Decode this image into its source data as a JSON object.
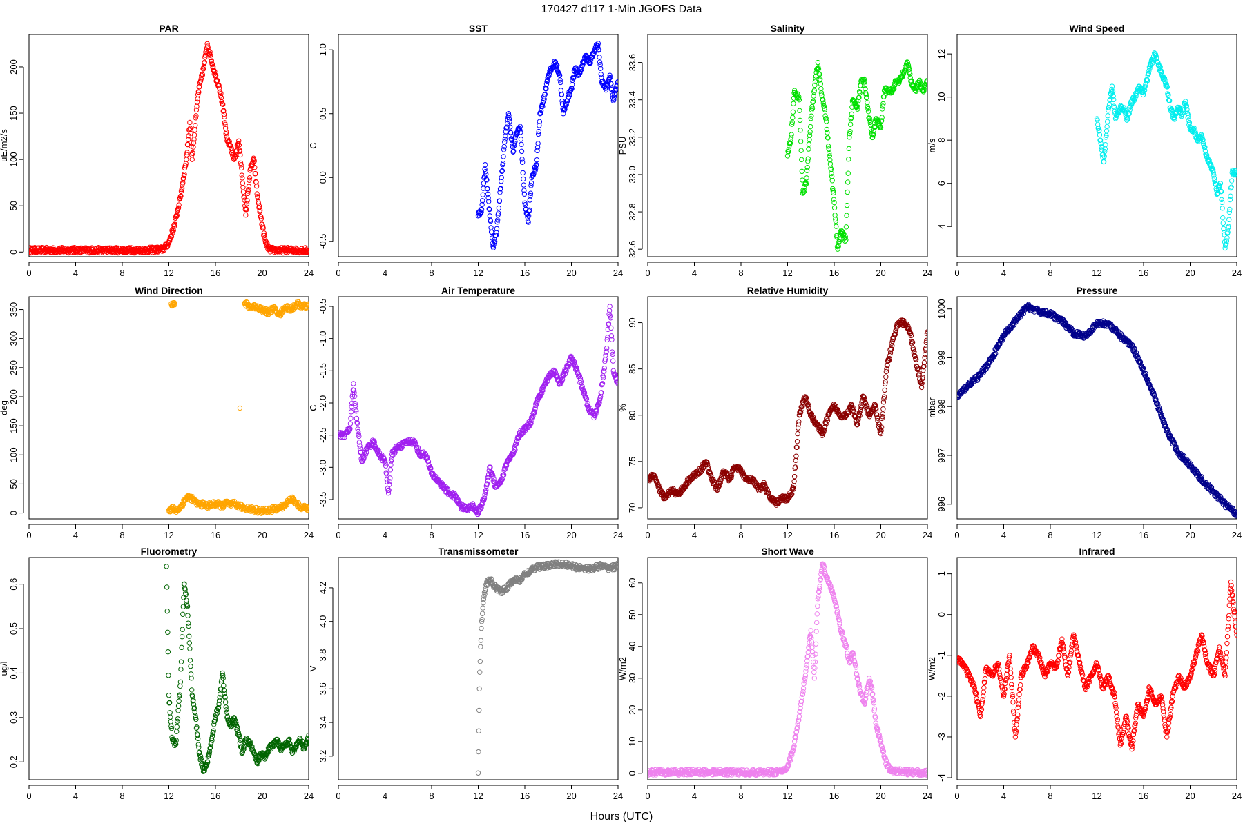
{
  "figure": {
    "title": "170427   d117   1-Min  JGOFS Data",
    "xlabel": "Hours (UTC)"
  },
  "chart_data": [
    {
      "type": "scatter",
      "title": "PAR",
      "ylabel": "uE/m2/s",
      "color": "#ff0000",
      "xlim": [
        0,
        24
      ],
      "ylim": [
        -5,
        235
      ],
      "xticks": [
        0,
        4,
        8,
        12,
        16,
        20,
        24
      ],
      "yticks": [
        0,
        50,
        100,
        150,
        200
      ],
      "x": [
        0,
        2,
        4,
        6,
        8,
        10,
        11.5,
        12,
        12.5,
        13,
        13.5,
        13.8,
        14,
        14.5,
        15,
        15.3,
        15.6,
        16,
        16.3,
        16.6,
        17,
        17.3,
        17.6,
        18,
        18.3,
        18.6,
        19,
        19.3,
        19.6,
        20,
        20.3,
        20.6,
        21,
        22,
        23,
        24
      ],
      "y": [
        2,
        2,
        2,
        2,
        2,
        2,
        3,
        10,
        30,
        60,
        100,
        140,
        100,
        170,
        200,
        225,
        210,
        190,
        180,
        160,
        120,
        115,
        100,
        120,
        80,
        40,
        90,
        100,
        60,
        30,
        10,
        3,
        2,
        2,
        2,
        2
      ]
    },
    {
      "type": "scatter",
      "title": "SST",
      "ylabel": "C",
      "color": "#0000ff",
      "xlim": [
        0,
        24
      ],
      "ylim": [
        -0.62,
        1.12
      ],
      "xticks": [
        0,
        4,
        8,
        12,
        16,
        20,
        24
      ],
      "yticks": [
        -0.5,
        0.0,
        0.5,
        1.0
      ],
      "x": [
        12,
        12.3,
        12.6,
        13,
        13.3,
        13.6,
        14,
        14.3,
        14.6,
        15,
        15.3,
        15.6,
        16,
        16.3,
        16.6,
        17,
        17.3,
        17.6,
        18,
        18.3,
        18.6,
        19,
        19.3,
        19.6,
        20,
        20.3,
        20.6,
        21,
        21.3,
        21.6,
        22,
        22.3,
        22.6,
        23,
        23.3,
        23.6,
        24
      ],
      "y": [
        -0.3,
        -0.25,
        0.1,
        -0.3,
        -0.55,
        -0.4,
        0.0,
        0.3,
        0.5,
        0.2,
        0.35,
        0.4,
        -0.2,
        -0.35,
        0.0,
        0.1,
        0.5,
        0.6,
        0.8,
        0.85,
        0.9,
        0.8,
        0.5,
        0.6,
        0.7,
        0.85,
        0.8,
        0.9,
        0.95,
        0.9,
        1.0,
        1.05,
        0.75,
        0.7,
        0.8,
        0.6,
        0.75
      ]
    },
    {
      "type": "scatter",
      "title": "Salinity",
      "ylabel": "PSU",
      "color": "#00e000",
      "xlim": [
        0,
        24
      ],
      "ylim": [
        32.56,
        33.75
      ],
      "xticks": [
        0,
        4,
        8,
        12,
        16,
        20,
        24
      ],
      "yticks": [
        32.6,
        32.8,
        33.0,
        33.2,
        33.4,
        33.6
      ],
      "x": [
        12,
        12.3,
        12.6,
        13,
        13.3,
        13.6,
        14,
        14.3,
        14.6,
        15,
        15.3,
        15.6,
        16,
        16.3,
        16.6,
        17,
        17.3,
        17.6,
        18,
        18.3,
        18.6,
        19,
        19.3,
        19.6,
        20,
        20.3,
        20.6,
        21,
        21.3,
        21.6,
        22,
        22.3,
        22.6,
        23,
        23.3,
        23.6,
        24
      ],
      "y": [
        33.1,
        33.2,
        33.45,
        33.4,
        32.9,
        32.95,
        33.3,
        33.45,
        33.6,
        33.4,
        33.3,
        33.1,
        32.85,
        32.6,
        32.7,
        32.65,
        33.2,
        33.4,
        33.35,
        33.5,
        33.5,
        33.3,
        33.2,
        33.3,
        33.25,
        33.45,
        33.45,
        33.45,
        33.5,
        33.5,
        33.55,
        33.6,
        33.5,
        33.45,
        33.5,
        33.45,
        33.5
      ]
    },
    {
      "type": "scatter",
      "title": "Wind Speed",
      "ylabel": "m/s",
      "color": "#00eeee",
      "xlim": [
        0,
        24
      ],
      "ylim": [
        2.6,
        12.9
      ],
      "xticks": [
        0,
        4,
        8,
        12,
        16,
        20,
        24
      ],
      "yticks": [
        4,
        6,
        8,
        10,
        12
      ],
      "x": [
        12,
        12.3,
        12.6,
        13,
        13.3,
        13.6,
        14,
        14.3,
        14.6,
        15,
        15.3,
        15.6,
        16,
        16.3,
        16.6,
        17,
        17.3,
        17.6,
        18,
        18.3,
        18.6,
        19,
        19.3,
        19.6,
        20,
        20.3,
        20.6,
        21,
        21.3,
        21.6,
        22,
        22.3,
        22.6,
        23,
        23.3,
        23.6,
        24
      ],
      "y": [
        9,
        8,
        7,
        9.5,
        10.5,
        9,
        9.5,
        9.5,
        9,
        9.8,
        10,
        10.5,
        10.2,
        10.8,
        11.5,
        12,
        11.5,
        11,
        10.5,
        9.5,
        9,
        9.5,
        9.2,
        9.8,
        8.5,
        8.5,
        8,
        8.2,
        7.5,
        7,
        6.5,
        5.5,
        6,
        3,
        4,
        6.5,
        6.5
      ]
    },
    {
      "type": "scatter",
      "title": "Wind Direction",
      "ylabel": "deg",
      "color": "#ffa500",
      "xlim": [
        0,
        24
      ],
      "ylim": [
        -10,
        372
      ],
      "xticks": [
        0,
        4,
        8,
        12,
        16,
        20,
        24
      ],
      "yticks": [
        0,
        50,
        100,
        150,
        200,
        250,
        300,
        350
      ],
      "x": [
        12,
        12.3,
        12.6,
        13,
        13.3,
        13.6,
        14,
        14.3,
        14.6,
        15,
        15.3,
        15.6,
        16,
        16.3,
        16.6,
        17,
        17.3,
        17.6,
        18,
        18.3,
        20,
        20.5,
        21.5,
        22,
        22.5,
        23,
        23.5,
        24,
        12.2,
        12.5,
        18.5,
        19,
        19.5,
        20,
        20.5,
        21,
        21.5,
        22,
        22.5,
        23,
        23.5,
        24
      ],
      "y": [
        5,
        8,
        4,
        10,
        20,
        28,
        25,
        18,
        15,
        15,
        12,
        14,
        16,
        15,
        12,
        18,
        14,
        16,
        12,
        10,
        3,
        5,
        8,
        15,
        25,
        15,
        8,
        10,
        360,
        358,
        360,
        355,
        355,
        350,
        345,
        352,
        340,
        355,
        350,
        360,
        355,
        358
      ]
    },
    {
      "type": "scatter",
      "title": "Air Temperature",
      "ylabel": "C",
      "color": "#a020f0",
      "xlim": [
        0,
        24
      ],
      "ylim": [
        -3.8,
        -0.35
      ],
      "xticks": [
        0,
        4,
        8,
        12,
        16,
        20,
        24
      ],
      "yticks": [
        -3.5,
        -3.0,
        -2.5,
        -2.0,
        -1.5,
        -1.0,
        -0.5
      ],
      "x": [
        0,
        0.5,
        1,
        1.3,
        1.6,
        2,
        2.5,
        3,
        3.5,
        4,
        4.3,
        4.6,
        5,
        5.5,
        6,
        6.5,
        7,
        7.5,
        8,
        8.5,
        9,
        9.5,
        10,
        10.5,
        11,
        11.5,
        12,
        12.5,
        13,
        13.5,
        14,
        14.5,
        15,
        15.5,
        16,
        16.5,
        17,
        17.5,
        18,
        18.5,
        19,
        19.5,
        20,
        20.5,
        21,
        21.5,
        22,
        22.5,
        23,
        23.3,
        23.6,
        24
      ],
      "y": [
        -2.5,
        -2.5,
        -2.4,
        -1.7,
        -2.3,
        -2.9,
        -2.7,
        -2.6,
        -2.8,
        -2.9,
        -3.4,
        -2.8,
        -2.7,
        -2.65,
        -2.6,
        -2.6,
        -2.8,
        -2.8,
        -3.1,
        -3.2,
        -3.3,
        -3.4,
        -3.45,
        -3.6,
        -3.65,
        -3.6,
        -3.7,
        -3.5,
        -3.0,
        -3.3,
        -3.2,
        -2.9,
        -2.8,
        -2.5,
        -2.4,
        -2.3,
        -2.0,
        -1.8,
        -1.6,
        -1.5,
        -1.7,
        -1.5,
        -1.3,
        -1.5,
        -1.8,
        -2.1,
        -2.2,
        -1.9,
        -1.2,
        -0.5,
        -1.5,
        -1.7
      ]
    },
    {
      "type": "scatter",
      "title": "Relative Humidity",
      "ylabel": "%",
      "color": "#8b0000",
      "xlim": [
        0,
        24
      ],
      "ylim": [
        68.8,
        92.8
      ],
      "xticks": [
        0,
        4,
        8,
        12,
        16,
        20,
        24
      ],
      "yticks": [
        70,
        75,
        80,
        85,
        90
      ],
      "x": [
        0,
        0.5,
        1,
        1.5,
        2,
        2.5,
        3,
        3.5,
        4,
        4.5,
        5,
        5.5,
        6,
        6.5,
        7,
        7.5,
        8,
        8.5,
        9,
        9.5,
        10,
        10.5,
        11,
        11.5,
        12,
        12.5,
        13,
        13.5,
        14,
        14.5,
        15,
        15.5,
        16,
        16.5,
        17,
        17.5,
        18,
        18.5,
        19,
        19.5,
        20,
        20.5,
        21,
        21.5,
        22,
        22.5,
        23,
        23.5,
        24
      ],
      "y": [
        73,
        73.5,
        72,
        71,
        72,
        71.5,
        72,
        73,
        73.5,
        74,
        75,
        73,
        72,
        74,
        73,
        74.5,
        74,
        73,
        73,
        72,
        72.5,
        71,
        70.5,
        71,
        71,
        72,
        80,
        82,
        80,
        79,
        78,
        80,
        81,
        80,
        80,
        81,
        79,
        82,
        80,
        81,
        78,
        85,
        88,
        90,
        90,
        89,
        86,
        83,
        89
      ]
    },
    {
      "type": "scatter",
      "title": "Pressure",
      "ylabel": "mbar",
      "color": "#00008b",
      "xlim": [
        0,
        24
      ],
      "ylim": [
        995.7,
        1000.25
      ],
      "xticks": [
        0,
        4,
        8,
        12,
        16,
        20,
        24
      ],
      "yticks": [
        996,
        997,
        998,
        999,
        1000
      ],
      "x": [
        0,
        1,
        2,
        3,
        4,
        5,
        6,
        7,
        8,
        9,
        10,
        11,
        12,
        13,
        14,
        15,
        16,
        17,
        18,
        19,
        20,
        21,
        22,
        23,
        24
      ],
      "y": [
        998.2,
        998.45,
        998.65,
        999.0,
        999.45,
        999.75,
        1000.05,
        999.95,
        999.9,
        999.75,
        999.5,
        999.45,
        999.7,
        999.7,
        999.45,
        999.25,
        998.75,
        998.15,
        997.5,
        997.05,
        996.8,
        996.5,
        996.25,
        996.0,
        995.8
      ]
    },
    {
      "type": "scatter",
      "title": "Fluorometry",
      "ylabel": "ug/l",
      "color": "#006400",
      "xlim": [
        0,
        24
      ],
      "ylim": [
        0.16,
        0.66
      ],
      "xticks": [
        0,
        4,
        8,
        12,
        16,
        20,
        24
      ],
      "yticks": [
        0.2,
        0.3,
        0.4,
        0.5,
        0.6
      ],
      "x": [
        11.8,
        12,
        12.3,
        12.6,
        13,
        13.3,
        13.6,
        14,
        14.3,
        14.6,
        15,
        15.3,
        15.6,
        16,
        16.3,
        16.6,
        17,
        17.3,
        17.6,
        18,
        18.3,
        18.6,
        19,
        19.3,
        19.6,
        20,
        20.3,
        20.6,
        21,
        21.3,
        21.6,
        22,
        22.3,
        22.6,
        23,
        23.3,
        23.6,
        24
      ],
      "y": [
        0.64,
        0.35,
        0.25,
        0.24,
        0.38,
        0.6,
        0.55,
        0.35,
        0.3,
        0.22,
        0.18,
        0.2,
        0.24,
        0.3,
        0.33,
        0.4,
        0.3,
        0.28,
        0.3,
        0.26,
        0.22,
        0.25,
        0.24,
        0.22,
        0.2,
        0.22,
        0.21,
        0.23,
        0.24,
        0.25,
        0.23,
        0.24,
        0.25,
        0.22,
        0.24,
        0.25,
        0.23,
        0.26
      ]
    },
    {
      "type": "scatter",
      "title": "Transmissometer",
      "ylabel": "V",
      "color": "#808080",
      "xlim": [
        0,
        24
      ],
      "ylim": [
        3.06,
        4.38
      ],
      "xticks": [
        0,
        4,
        8,
        12,
        16,
        20,
        24
      ],
      "yticks": [
        3.2,
        3.4,
        3.6,
        3.8,
        4.0,
        4.2
      ],
      "x": [
        12,
        12.05,
        12.1,
        12.2,
        12.3,
        12.5,
        12.7,
        13,
        13.5,
        14,
        14.5,
        15,
        15.5,
        16,
        16.5,
        17,
        17.5,
        18,
        18.5,
        19,
        19.5,
        20,
        20.5,
        21,
        21.5,
        22,
        22.5,
        23,
        23.5,
        24
      ],
      "y": [
        3.1,
        3.35,
        3.6,
        3.85,
        4.0,
        4.15,
        4.22,
        4.25,
        4.2,
        4.18,
        4.2,
        4.25,
        4.24,
        4.28,
        4.3,
        4.32,
        4.33,
        4.33,
        4.34,
        4.34,
        4.34,
        4.33,
        4.32,
        4.32,
        4.31,
        4.32,
        4.33,
        4.32,
        4.32,
        4.33
      ]
    },
    {
      "type": "scatter",
      "title": "Short Wave",
      "ylabel": "W/m2",
      "color": "#ee82ee",
      "xlim": [
        0,
        24
      ],
      "ylim": [
        -2,
        68
      ],
      "xticks": [
        0,
        4,
        8,
        12,
        16,
        20,
        24
      ],
      "yticks": [
        0,
        10,
        20,
        30,
        40,
        50,
        60
      ],
      "x": [
        0,
        2,
        4,
        6,
        8,
        10,
        11.5,
        12,
        12.5,
        13,
        13.5,
        14,
        14.3,
        14.6,
        15,
        15.3,
        15.6,
        16,
        16.3,
        16.6,
        17,
        17.3,
        17.6,
        18,
        18.3,
        18.6,
        19,
        19.3,
        19.6,
        20,
        20.3,
        20.6,
        21,
        22,
        23,
        24
      ],
      "y": [
        0.3,
        0.3,
        0.4,
        0.4,
        0.3,
        0.3,
        0.5,
        2,
        8,
        18,
        30,
        45,
        30,
        55,
        66,
        62,
        60,
        55,
        50,
        45,
        40,
        35,
        38,
        30,
        25,
        22,
        30,
        25,
        15,
        10,
        5,
        2,
        0.8,
        0.5,
        0.3,
        0.2
      ]
    },
    {
      "type": "scatter",
      "title": "Infrared",
      "ylabel": "W/m2",
      "color": "#ff0000",
      "xlim": [
        0,
        24
      ],
      "ylim": [
        -4.05,
        1.4
      ],
      "xticks": [
        0,
        4,
        8,
        12,
        16,
        20,
        24
      ],
      "yticks": [
        -4,
        -3,
        -2,
        -1,
        0,
        1
      ],
      "x": [
        0,
        0.5,
        1,
        1.5,
        2,
        2.5,
        3,
        3.5,
        4,
        4.5,
        5,
        5.5,
        6,
        6.5,
        7,
        7.5,
        8,
        8.5,
        9,
        9.5,
        10,
        10.5,
        11,
        11.5,
        12,
        12.5,
        13,
        13.5,
        14,
        14.5,
        15,
        15.5,
        16,
        16.5,
        17,
        17.5,
        18,
        18.5,
        19,
        19.5,
        20,
        20.5,
        21,
        21.5,
        22,
        22.5,
        23,
        23.5,
        24
      ],
      "y": [
        -1.1,
        -1.2,
        -1.5,
        -1.8,
        -2.5,
        -1.3,
        -1.5,
        -1.2,
        -2.0,
        -1.0,
        -3.0,
        -1.5,
        -1.2,
        -0.8,
        -1.0,
        -1.5,
        -1.2,
        -1.3,
        -0.6,
        -1.5,
        -0.5,
        -1.2,
        -1.8,
        -1.5,
        -1.2,
        -1.8,
        -1.5,
        -2.0,
        -3.2,
        -2.5,
        -3.3,
        -2.2,
        -2.5,
        -1.8,
        -2.2,
        -2.0,
        -3.0,
        -2.0,
        -1.5,
        -1.8,
        -1.5,
        -1.0,
        -0.5,
        -1.2,
        -1.5,
        -0.8,
        -1.5,
        0.8,
        -0.5
      ]
    }
  ]
}
